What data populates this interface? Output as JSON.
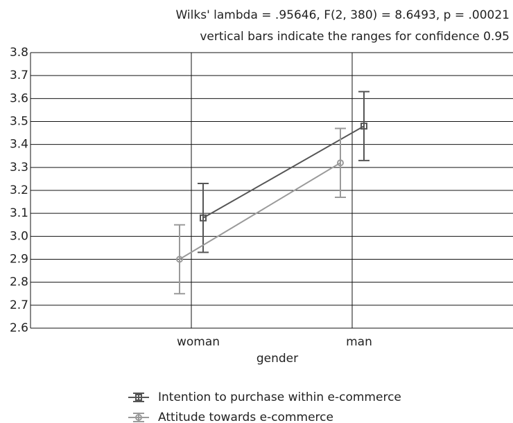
{
  "chart_data": {
    "type": "line",
    "annotations": [
      "Wilks' lambda = .95646, F(2, 380) = 8.6493, p = .00021",
      "vertical bars indicate the ranges for confidence 0.95"
    ],
    "xlabel": "gender",
    "categories": [
      "woman",
      "man"
    ],
    "series": [
      {
        "name": "Intention to purchase within e-commerce",
        "color": "#555555",
        "marker": "square",
        "values": [
          3.08,
          3.48
        ],
        "errors": [
          0.15,
          0.15
        ]
      },
      {
        "name": "Attitude towards e-commerce",
        "color": "#9a9a9a",
        "marker": "circle",
        "values": [
          2.9,
          3.32
        ],
        "errors": [
          0.15,
          0.15
        ]
      }
    ],
    "ylim": [
      2.6,
      3.8
    ],
    "yticks": [
      2.6,
      2.7,
      2.8,
      2.9,
      {
        "value": 3,
        "label": "3.0"
      },
      3.1,
      3.2,
      3.3,
      3.4,
      3.5,
      3.6,
      3.7,
      3.8
    ],
    "grid": true,
    "legend": "bottom"
  }
}
